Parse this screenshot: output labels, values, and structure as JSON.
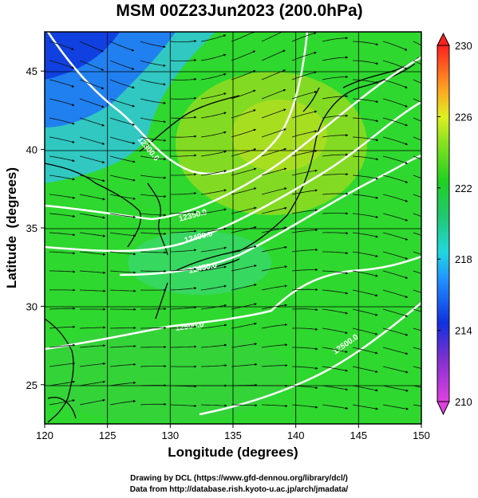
{
  "title": "MSM 00Z23Jun2023 (200.0hPa)",
  "credits": [
    "Drawing by DCL (https://www.gfd-dennou.org/library/dcl/)",
    "Data from http://database.rish.kyoto-u.ac.jp/arch/jmadata/"
  ],
  "chart_data": {
    "type": "heatmap",
    "title": "MSM 00Z23Jun2023 (200.0hPa)",
    "xlabel": "Longitude (degrees)",
    "ylabel": "Latitude  (degrees)",
    "xlim": [
      120,
      150
    ],
    "ylim": [
      22.5,
      47.5
    ],
    "x_ticks": [
      120,
      125,
      130,
      135,
      140,
      145,
      150
    ],
    "y_ticks": [
      25,
      30,
      35,
      40,
      45
    ],
    "colorbar": {
      "min": 210,
      "max": 230,
      "tick_labels": [
        "230",
        "226",
        "222",
        "218",
        "214",
        "210"
      ],
      "tick_values": [
        230,
        226,
        222,
        218,
        214,
        210
      ]
    },
    "contours": [
      {
        "label": "12300.0",
        "color": "#ffffff"
      },
      {
        "label": "12350.0",
        "color": "#ffffff"
      },
      {
        "label": "12400.0",
        "color": "#ffffff"
      },
      {
        "label": "12450.0",
        "color": "#ffffff"
      },
      {
        "label": "12500.0",
        "color": "#ffffff"
      }
    ],
    "overlay": "streamlines",
    "grid": true
  },
  "colors": {
    "background": "#ffffff",
    "high": "#ff2020",
    "mid": "#20d020",
    "low": "#1030e0",
    "contour": "#ffffff",
    "coast": "#000000"
  }
}
